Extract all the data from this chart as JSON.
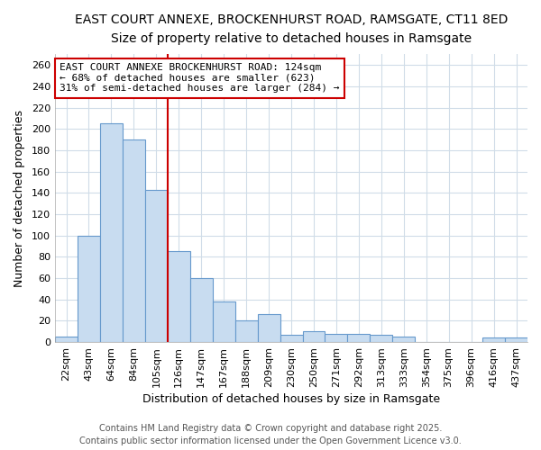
{
  "title_line1": "EAST COURT ANNEXE, BROCKENHURST ROAD, RAMSGATE, CT11 8ED",
  "title_line2": "Size of property relative to detached houses in Ramsgate",
  "xlabel": "Distribution of detached houses by size in Ramsgate",
  "ylabel": "Number of detached properties",
  "categories": [
    "22sqm",
    "43sqm",
    "64sqm",
    "84sqm",
    "105sqm",
    "126sqm",
    "147sqm",
    "167sqm",
    "188sqm",
    "209sqm",
    "230sqm",
    "250sqm",
    "271sqm",
    "292sqm",
    "313sqm",
    "333sqm",
    "354sqm",
    "375sqm",
    "396sqm",
    "416sqm",
    "437sqm"
  ],
  "values": [
    5,
    100,
    205,
    190,
    143,
    85,
    60,
    38,
    20,
    26,
    7,
    10,
    8,
    8,
    7,
    5,
    0,
    0,
    0,
    4,
    4
  ],
  "bar_color": "#c8dcf0",
  "bar_edge_color": "#6699cc",
  "vline_color": "#cc0000",
  "annotation_title": "EAST COURT ANNEXE BROCKENHURST ROAD: 124sqm",
  "annotation_line1": "← 68% of detached houses are smaller (623)",
  "annotation_line2": "31% of semi-detached houses are larger (284) →",
  "annotation_box_facecolor": "#ffffff",
  "annotation_box_edgecolor": "#cc0000",
  "ylim": [
    0,
    270
  ],
  "yticks": [
    0,
    20,
    40,
    60,
    80,
    100,
    120,
    140,
    160,
    180,
    200,
    220,
    240,
    260
  ],
  "background_color": "#ffffff",
  "plot_bg_color": "#ffffff",
  "grid_color": "#d0dce8",
  "footer_line1": "Contains HM Land Registry data © Crown copyright and database right 2025.",
  "footer_line2": "Contains public sector information licensed under the Open Government Licence v3.0.",
  "title1_fontsize": 10,
  "title2_fontsize": 9,
  "axis_label_fontsize": 9,
  "tick_fontsize": 8,
  "footer_fontsize": 7,
  "annotation_fontsize": 8
}
